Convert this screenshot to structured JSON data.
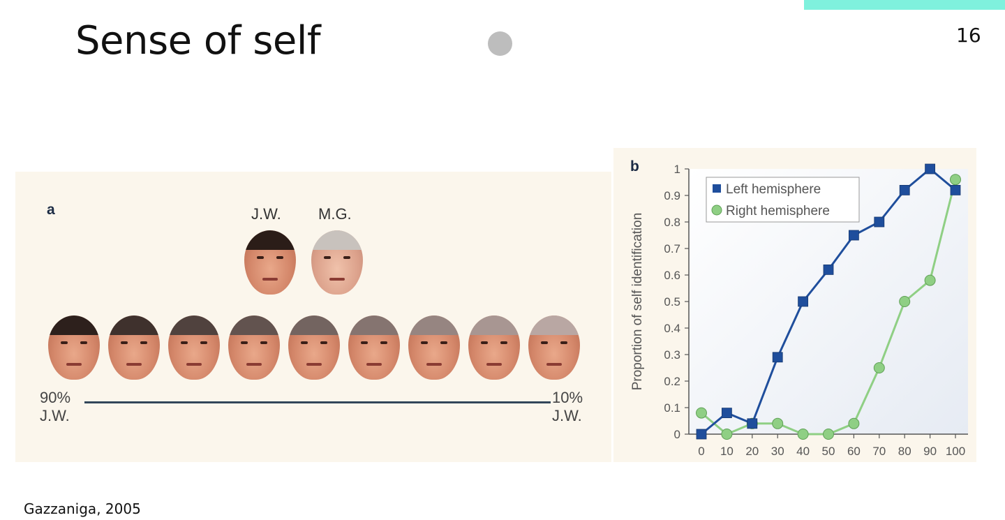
{
  "slide": {
    "title": "Sense of self",
    "number": "16",
    "citation": "Gazzaniga, 2005",
    "accent_color": "#7ff1dd"
  },
  "panel_a": {
    "letter": "a",
    "top_labels": [
      "J.W.",
      "M.G."
    ],
    "morph_left": [
      "90%",
      "J.W."
    ],
    "morph_right": [
      "10%",
      "J.W."
    ],
    "morph_face_count": 9
  },
  "chart_data": {
    "type": "line",
    "panel_letter": "b",
    "title": "",
    "xlabel": "",
    "ylabel": "Proportion of self identification",
    "x": [
      0,
      10,
      20,
      30,
      40,
      50,
      60,
      70,
      80,
      90,
      100
    ],
    "xlim": [
      0,
      100
    ],
    "ylim": [
      0,
      1
    ],
    "yticks": [
      "0",
      "0.1",
      "0.2",
      "0.3",
      "0.4",
      "0.5",
      "0.6",
      "0.7",
      "0.8",
      "0.9",
      "1"
    ],
    "series": [
      {
        "name": "Left hemisphere",
        "marker": "square",
        "color": "#1f4e9c",
        "values": [
          0.0,
          0.08,
          0.04,
          0.29,
          0.5,
          0.62,
          0.75,
          0.8,
          0.92,
          1.0,
          0.92
        ]
      },
      {
        "name": "Right hemisphere",
        "marker": "circle",
        "color": "#8fcf84",
        "values": [
          0.08,
          0.0,
          0.04,
          0.04,
          0.0,
          0.0,
          0.04,
          0.25,
          0.5,
          0.58,
          0.96
        ]
      }
    ],
    "legend_position": "top-left",
    "grid": false
  }
}
